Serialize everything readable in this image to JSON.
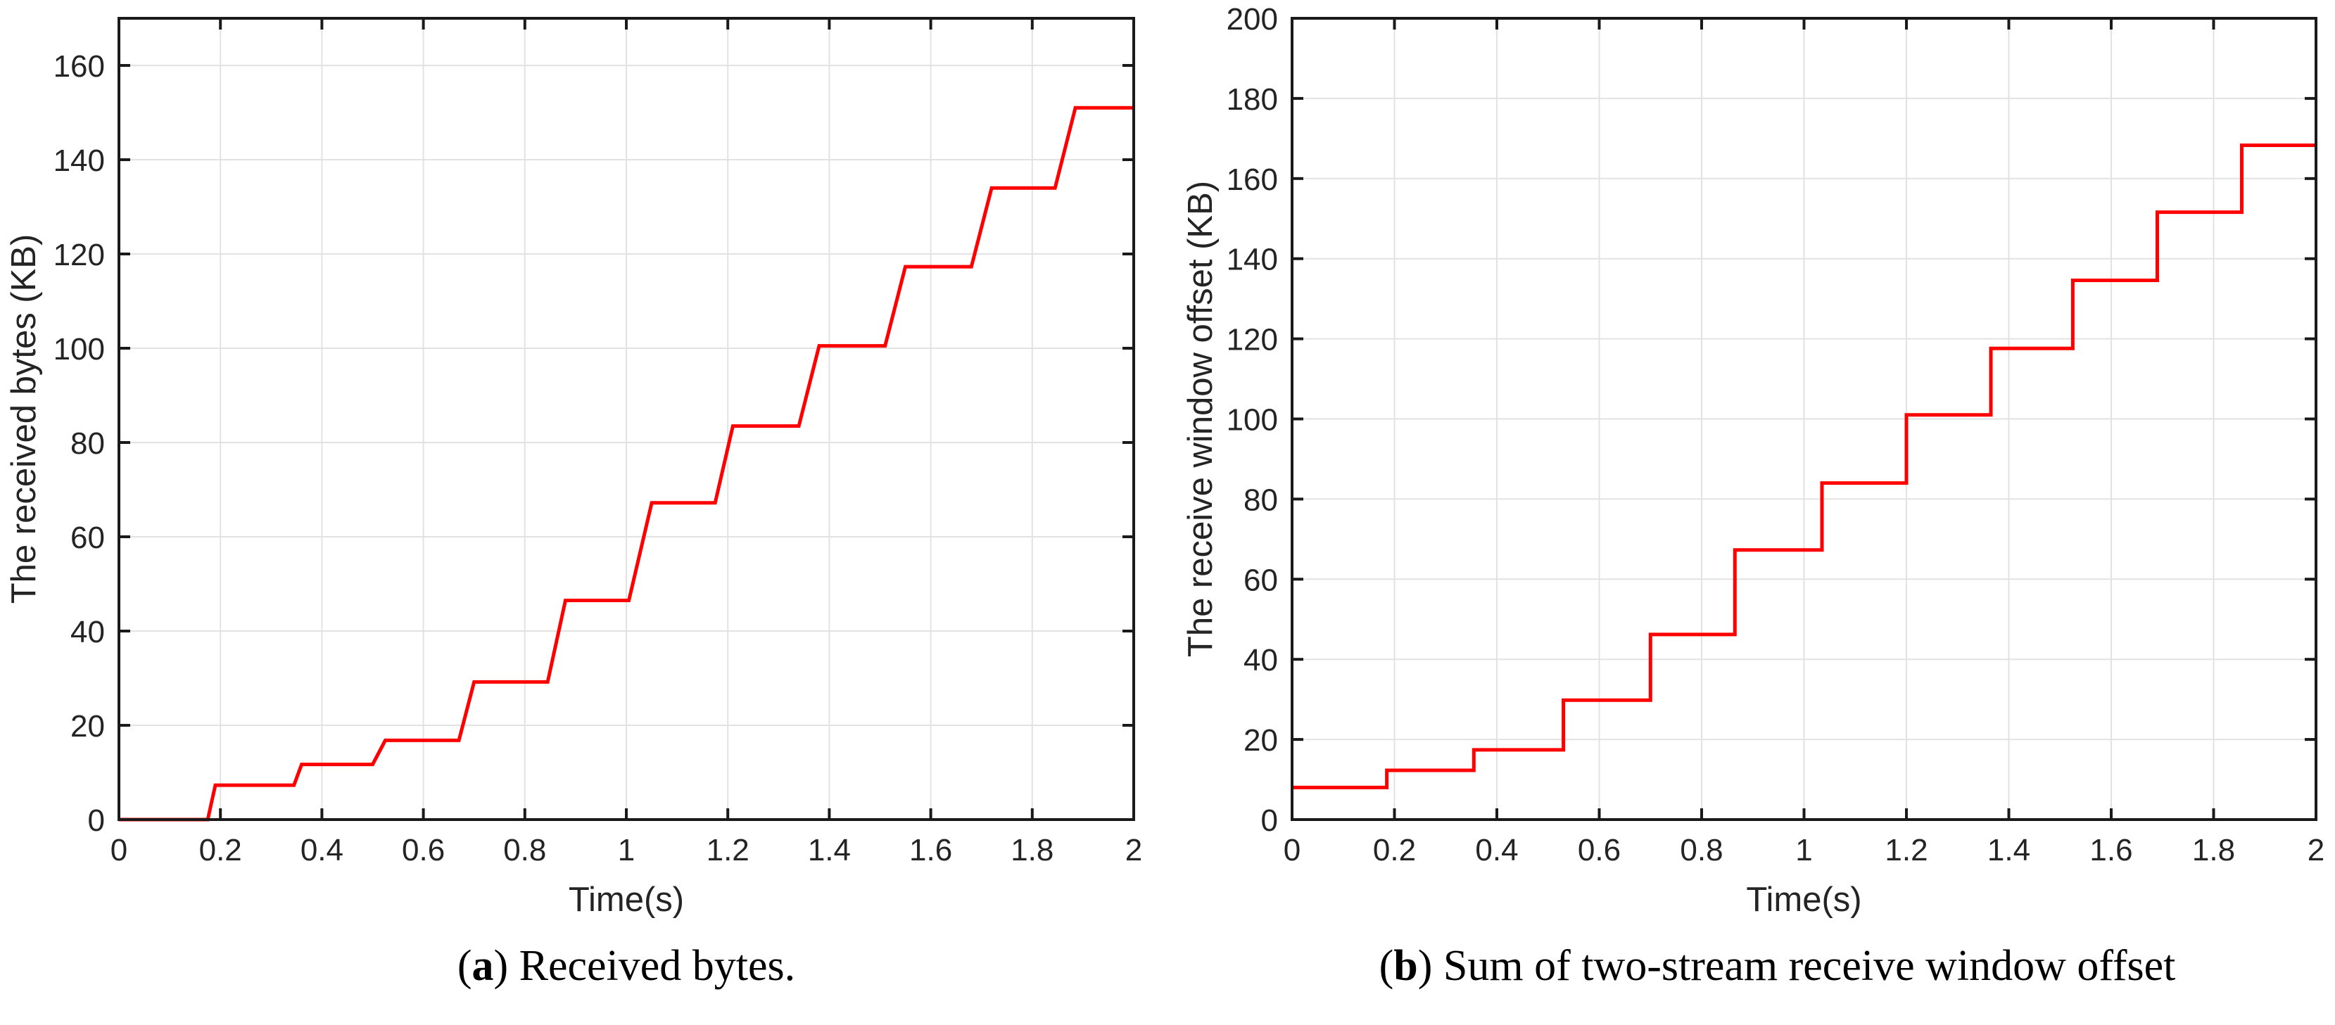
{
  "page": {
    "background": "#ffffff"
  },
  "colors": {
    "line": "#ff0000",
    "grid": "#e2e2e2",
    "axis": "#1a1a1a",
    "tick_label": "#242424",
    "caption": "#000000"
  },
  "chart_data": [
    {
      "type": "line",
      "subtype": "step",
      "title": "",
      "xlabel": "Time(s)",
      "ylabel": "The received bytes (KB)",
      "xlim": [
        0,
        2
      ],
      "ylim": [
        0,
        170
      ],
      "grid": true,
      "legend": "none",
      "xticks": [
        0,
        0.2,
        0.4,
        0.6,
        0.8,
        1,
        1.2,
        1.4,
        1.6,
        1.8,
        2
      ],
      "xtick_labels": [
        "0",
        "0.2",
        "0.4",
        "0.6",
        "0.8",
        "1",
        "1.2",
        "1.4",
        "1.6",
        "1.8",
        "2"
      ],
      "yticks": [
        0,
        20,
        40,
        60,
        80,
        100,
        120,
        140,
        160
      ],
      "ytick_labels": [
        "0",
        "20",
        "40",
        "60",
        "80",
        "100",
        "120",
        "140",
        "160"
      ],
      "series": [
        {
          "name": "received bytes",
          "color": "#ff0000",
          "points": [
            [
              0,
              0
            ],
            [
              0.175,
              0
            ],
            [
              0.19,
              7.3
            ],
            [
              0.345,
              7.3
            ],
            [
              0.36,
              11.7
            ],
            [
              0.5,
              11.7
            ],
            [
              0.525,
              16.8
            ],
            [
              0.67,
              16.8
            ],
            [
              0.7,
              29.2
            ],
            [
              0.845,
              29.2
            ],
            [
              0.88,
              46.5
            ],
            [
              1.005,
              46.5
            ],
            [
              1.05,
              67.2
            ],
            [
              1.175,
              67.2
            ],
            [
              1.21,
              83.5
            ],
            [
              1.34,
              83.5
            ],
            [
              1.38,
              100.5
            ],
            [
              1.51,
              100.5
            ],
            [
              1.55,
              117.3
            ],
            [
              1.68,
              117.3
            ],
            [
              1.72,
              134.0
            ],
            [
              1.845,
              134.0
            ],
            [
              1.885,
              151.0
            ],
            [
              2,
              151.0
            ]
          ]
        }
      ],
      "caption": {
        "open": "(",
        "bold_letter": "a",
        "close": ")",
        "text": "Received bytes."
      }
    },
    {
      "type": "line",
      "subtype": "step",
      "title": "",
      "xlabel": "Time(s)",
      "ylabel": "The receive window offset (KB)",
      "xlim": [
        0,
        2
      ],
      "ylim": [
        0,
        200
      ],
      "grid": true,
      "legend": "none",
      "xticks": [
        0,
        0.2,
        0.4,
        0.6,
        0.8,
        1,
        1.2,
        1.4,
        1.6,
        1.8,
        2
      ],
      "xtick_labels": [
        "0",
        "0.2",
        "0.4",
        "0.6",
        "0.8",
        "1",
        "1.2",
        "1.4",
        "1.6",
        "1.8",
        "2"
      ],
      "yticks": [
        0,
        20,
        40,
        60,
        80,
        100,
        120,
        140,
        160,
        180,
        200
      ],
      "ytick_labels": [
        "0",
        "20",
        "40",
        "60",
        "80",
        "100",
        "120",
        "140",
        "160",
        "180",
        "200"
      ],
      "series": [
        {
          "name": "sum of two-stream receive window offset",
          "color": "#ff0000",
          "points": [
            [
              0,
              8.0
            ],
            [
              0.185,
              8.0
            ],
            [
              0.185,
              12.3
            ],
            [
              0.355,
              12.3
            ],
            [
              0.355,
              17.4
            ],
            [
              0.53,
              17.4
            ],
            [
              0.53,
              29.8
            ],
            [
              0.7,
              29.8
            ],
            [
              0.7,
              46.2
            ],
            [
              0.865,
              46.2
            ],
            [
              0.865,
              67.3
            ],
            [
              1.035,
              67.3
            ],
            [
              1.035,
              84.0
            ],
            [
              1.2,
              84.0
            ],
            [
              1.2,
              101.0
            ],
            [
              1.365,
              101.0
            ],
            [
              1.365,
              117.6
            ],
            [
              1.525,
              117.6
            ],
            [
              1.525,
              134.6
            ],
            [
              1.69,
              134.6
            ],
            [
              1.69,
              151.6
            ],
            [
              1.855,
              151.6
            ],
            [
              1.855,
              168.3
            ],
            [
              2,
              168.3
            ]
          ]
        }
      ],
      "caption": {
        "open": "(",
        "bold_letter": "b",
        "close": ")",
        "text": "Sum of two-stream receive window offset"
      }
    }
  ]
}
